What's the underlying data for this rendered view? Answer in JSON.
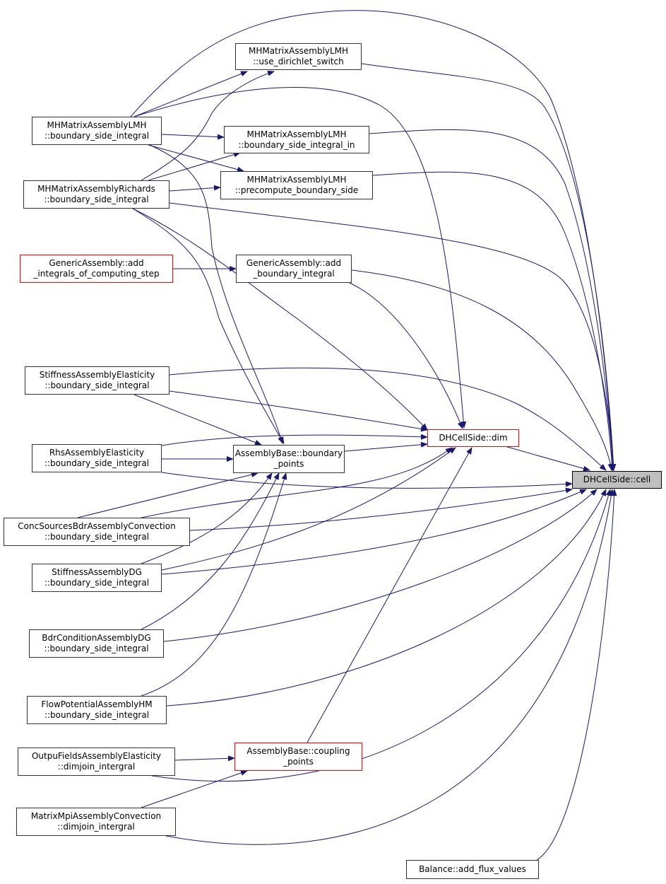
{
  "colors": {
    "edge": "#191970",
    "highlight_border": "#ff0000",
    "target_fill": "#bfbfbf"
  },
  "nodes": [
    {
      "id": "use_dirichlet",
      "lines": [
        "MHMatrixAssemblyLMH",
        "::use_dirichlet_switch"
      ],
      "style": "normal"
    },
    {
      "id": "lmh_bsi",
      "lines": [
        "MHMatrixAssemblyLMH",
        "::boundary_side_integral"
      ],
      "style": "normal"
    },
    {
      "id": "bsi_in",
      "lines": [
        "MHMatrixAssemblyLMH",
        "::boundary_side_integral_in"
      ],
      "style": "normal"
    },
    {
      "id": "richards_bsi",
      "lines": [
        "MHMatrixAssemblyRichards",
        "::boundary_side_integral"
      ],
      "style": "normal"
    },
    {
      "id": "precompute",
      "lines": [
        "MHMatrixAssemblyLMH",
        "::precompute_boundary_side"
      ],
      "style": "normal"
    },
    {
      "id": "add_integrals",
      "lines": [
        "GenericAssembly::add",
        "_integrals_of_computing_step"
      ],
      "style": "red"
    },
    {
      "id": "add_boundary",
      "lines": [
        "GenericAssembly::add",
        "_boundary_integral"
      ],
      "style": "normal"
    },
    {
      "id": "stiff_elast",
      "lines": [
        "StiffnessAssemblyElasticity",
        "::boundary_side_integral"
      ],
      "style": "normal"
    },
    {
      "id": "rhs_elast",
      "lines": [
        "RhsAssemblyElasticity",
        "::boundary_side_integral"
      ],
      "style": "normal"
    },
    {
      "id": "boundary_points",
      "lines": [
        "AssemblyBase::boundary",
        "_points"
      ],
      "style": "normal"
    },
    {
      "id": "dim",
      "lines": [
        "DHCellSide::dim"
      ],
      "style": "red"
    },
    {
      "id": "cell",
      "lines": [
        "DHCellSide::cell"
      ],
      "style": "gray"
    },
    {
      "id": "conc_sources",
      "lines": [
        "ConcSourcesBdrAssemblyConvection",
        "::boundary_side_integral"
      ],
      "style": "normal"
    },
    {
      "id": "stiff_dg",
      "lines": [
        "StiffnessAssemblyDG",
        "::boundary_side_integral"
      ],
      "style": "normal"
    },
    {
      "id": "bdr_cond",
      "lines": [
        "BdrConditionAssemblyDG",
        "::boundary_side_integral"
      ],
      "style": "normal"
    },
    {
      "id": "flow_pot",
      "lines": [
        "FlowPotentialAssemblyHM",
        "::boundary_side_integral"
      ],
      "style": "normal"
    },
    {
      "id": "outpu_fields",
      "lines": [
        "OutpuFieldsAssemblyElasticity",
        "::dimjoin_intergral"
      ],
      "style": "normal"
    },
    {
      "id": "coupling_points",
      "lines": [
        "AssemblyBase::coupling",
        "_points"
      ],
      "style": "red"
    },
    {
      "id": "matrix_mpi",
      "lines": [
        "MatrixMpiAssemblyConvection",
        "::dimjoin_intergral"
      ],
      "style": "normal"
    },
    {
      "id": "balance",
      "lines": [
        "Balance::add_flux_values"
      ],
      "style": "normal"
    }
  ],
  "edges": [
    [
      "lmh_bsi",
      "cell"
    ],
    [
      "lmh_bsi",
      "use_dirichlet"
    ],
    [
      "lmh_bsi",
      "bsi_in"
    ],
    [
      "lmh_bsi",
      "precompute"
    ],
    [
      "lmh_bsi",
      "dim"
    ],
    [
      "lmh_bsi",
      "boundary_points"
    ],
    [
      "richards_bsi",
      "use_dirichlet"
    ],
    [
      "richards_bsi",
      "bsi_in"
    ],
    [
      "richards_bsi",
      "precompute"
    ],
    [
      "richards_bsi",
      "cell"
    ],
    [
      "richards_bsi",
      "dim"
    ],
    [
      "richards_bsi",
      "boundary_points"
    ],
    [
      "add_integrals",
      "add_boundary"
    ],
    [
      "add_boundary",
      "cell"
    ],
    [
      "add_boundary",
      "dim"
    ],
    [
      "use_dirichlet",
      "cell"
    ],
    [
      "bsi_in",
      "cell"
    ],
    [
      "precompute",
      "cell"
    ],
    [
      "stiff_elast",
      "cell"
    ],
    [
      "stiff_elast",
      "dim"
    ],
    [
      "stiff_elast",
      "boundary_points"
    ],
    [
      "rhs_elast",
      "dim"
    ],
    [
      "rhs_elast",
      "boundary_points"
    ],
    [
      "rhs_elast",
      "cell"
    ],
    [
      "boundary_points",
      "dim"
    ],
    [
      "dim",
      "cell"
    ],
    [
      "conc_sources",
      "boundary_points"
    ],
    [
      "conc_sources",
      "dim"
    ],
    [
      "conc_sources",
      "cell"
    ],
    [
      "stiff_dg",
      "boundary_points"
    ],
    [
      "stiff_dg",
      "dim"
    ],
    [
      "stiff_dg",
      "cell"
    ],
    [
      "bdr_cond",
      "boundary_points"
    ],
    [
      "bdr_cond",
      "cell"
    ],
    [
      "flow_pot",
      "boundary_points"
    ],
    [
      "flow_pot",
      "cell"
    ],
    [
      "outpu_fields",
      "coupling_points"
    ],
    [
      "outpu_fields",
      "cell"
    ],
    [
      "matrix_mpi",
      "coupling_points"
    ],
    [
      "matrix_mpi",
      "cell"
    ],
    [
      "coupling_points",
      "dim"
    ],
    [
      "balance",
      "cell"
    ]
  ]
}
